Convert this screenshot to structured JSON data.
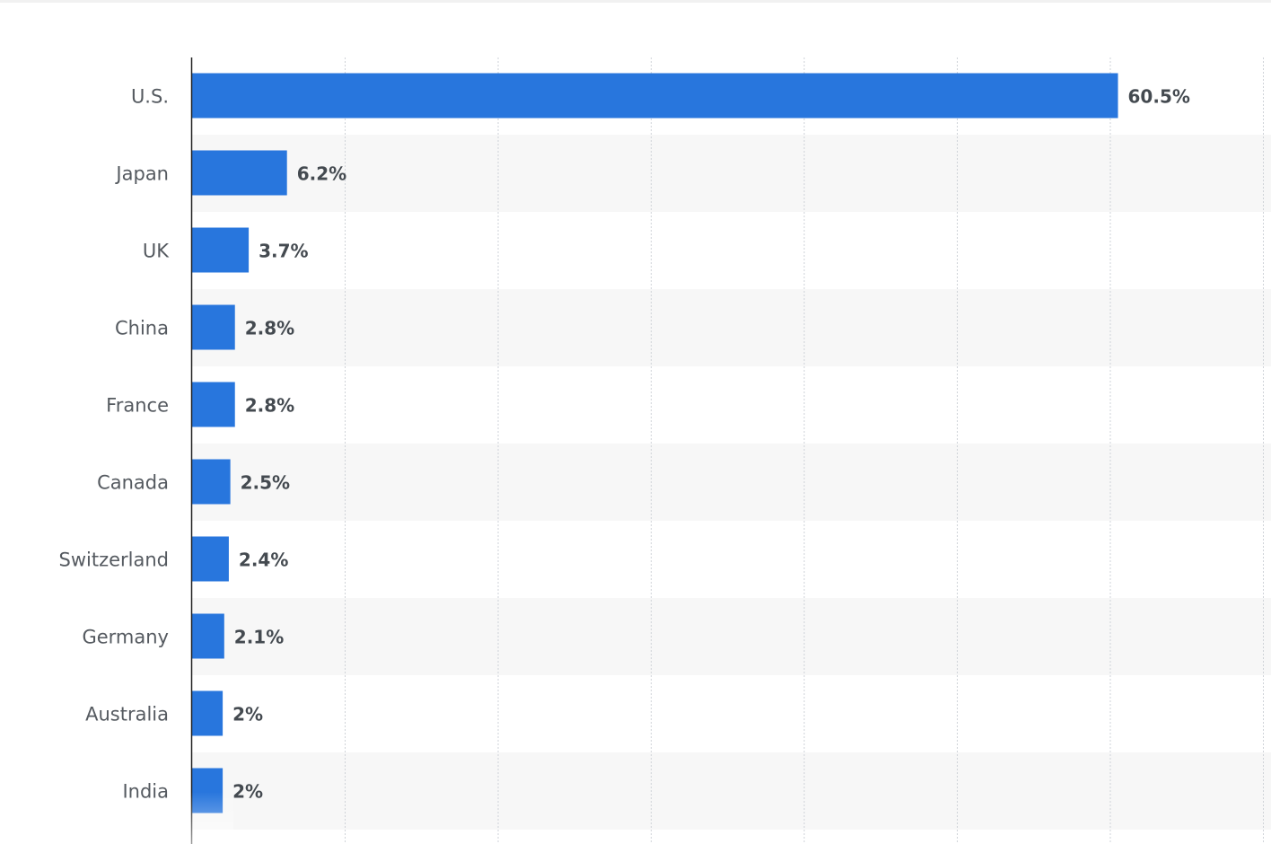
{
  "chart_data": {
    "type": "bar",
    "orientation": "horizontal",
    "categories": [
      "U.S.",
      "Japan",
      "UK",
      "China",
      "France",
      "Canada",
      "Switzerland",
      "Germany",
      "Australia",
      "India"
    ],
    "values": [
      60.5,
      6.2,
      3.7,
      2.8,
      2.8,
      2.5,
      2.4,
      2.1,
      2,
      2
    ],
    "value_labels": [
      "60.5%",
      "6.2%",
      "3.7%",
      "2.8%",
      "2.8%",
      "2.5%",
      "2.4%",
      "2.1%",
      "2%",
      "2%"
    ],
    "xlim": [
      0,
      70
    ],
    "grid": true,
    "gridlines_at": [
      10,
      20,
      30,
      40,
      50,
      60,
      70
    ],
    "bar_color": "#2876dd",
    "alt_row_color": "#f7f7f7",
    "title": "",
    "xlabel": "",
    "ylabel": ""
  }
}
